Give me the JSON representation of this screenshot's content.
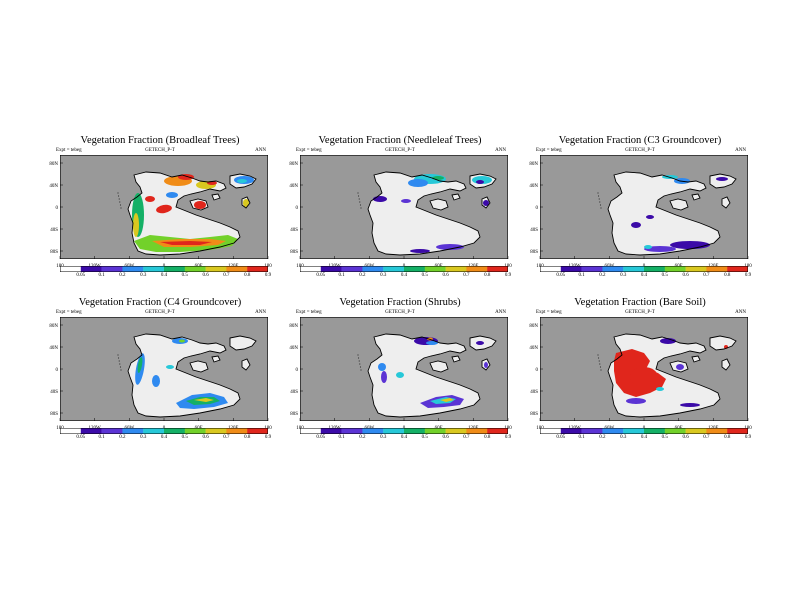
{
  "colors": {
    "ocean": "#999999",
    "land": "#eeeeee",
    "coast": "#000000",
    "scale": [
      "#ffffff",
      "#3b0aa8",
      "#5b34d4",
      "#2f8af0",
      "#27c8d8",
      "#14b066",
      "#72d12a",
      "#d9c820",
      "#f08c17",
      "#e0261c"
    ]
  },
  "common": {
    "expt": "Expt = tebeg",
    "code": "GETECH_P-T",
    "period": "ANN",
    "lat_ticks": [
      "80N",
      "40N",
      "0",
      "40S",
      "80S"
    ],
    "lon_ticks": [
      "180",
      "120W",
      "60W",
      "0",
      "60E",
      "120E",
      "180"
    ],
    "cbar_ticks": [
      "0.05",
      "0.1",
      "0.2",
      "0.3",
      "0.4",
      "0.5",
      "0.6",
      "0.7",
      "0.8",
      "0.9"
    ]
  },
  "panels": [
    {
      "id": "broadleaf",
      "title": "Vegetation Fraction (Broadleaf Trees)",
      "lat_ticks": [
        "80N",
        "40N",
        "0",
        "40S",
        "80S"
      ],
      "lon_ticks": [
        "180",
        "120W",
        "60W",
        "0",
        "60E",
        "120E",
        "180"
      ],
      "cbar_ticks": [
        "0.05",
        "0.1",
        "0.2",
        "0.3",
        "0.4",
        "0.5",
        "0.6",
        "0.7",
        "0.8",
        "0.9"
      ]
    },
    {
      "id": "needleleaf",
      "title": "Vegetation Fraction (Needleleaf Trees)",
      "lat_ticks": [
        "80N",
        "40N",
        "0",
        "40S",
        "80S"
      ],
      "lon_ticks": [
        "180",
        "120W",
        "60W",
        "0",
        "60E",
        "120E",
        "180"
      ],
      "cbar_ticks": [
        "0.05",
        "0.1",
        "0.2",
        "0.3",
        "0.4",
        "0.5",
        "0.6",
        "0.7",
        "0.8",
        "0.9"
      ]
    },
    {
      "id": "c3",
      "title": "Vegetation Fraction (C3 Groundcover)",
      "lat_ticks": [
        "80N",
        "40N",
        "0",
        "40S",
        "80S"
      ],
      "lon_ticks": [
        "180",
        "120W",
        "60W",
        "0",
        "60E",
        "120E",
        "180"
      ],
      "cbar_ticks": [
        "0.05",
        "0.1",
        "0.2",
        "0.3",
        "0.4",
        "0.5",
        "0.6",
        "0.7",
        "0.8",
        "0.9"
      ]
    },
    {
      "id": "c4",
      "title": "Vegetation Fraction (C4 Groundcover)",
      "lat_ticks": [
        "80N",
        "40N",
        "0",
        "40S",
        "80S"
      ],
      "lon_ticks": [
        "180",
        "120W",
        "60W",
        "0",
        "60E",
        "120E",
        "180"
      ],
      "cbar_ticks": [
        "0.05",
        "0.1",
        "0.2",
        "0.3",
        "0.4",
        "0.5",
        "0.6",
        "0.7",
        "0.8",
        "0.9"
      ]
    },
    {
      "id": "shrubs",
      "title": "Vegetation Fraction (Shrubs)",
      "lat_ticks": [
        "80N",
        "40N",
        "0",
        "40S",
        "80S"
      ],
      "lon_ticks": [
        "180",
        "120W",
        "60W",
        "0",
        "60E",
        "120E",
        "180"
      ],
      "cbar_ticks": [
        "0.05",
        "0.1",
        "0.2",
        "0.3",
        "0.4",
        "0.5",
        "0.6",
        "0.7",
        "0.8",
        "0.9"
      ]
    },
    {
      "id": "baresoil",
      "title": "Vegetation Fraction (Bare Soil)",
      "lat_ticks": [
        "80N",
        "40N",
        "0",
        "40S",
        "80S"
      ],
      "lon_ticks": [
        "180",
        "120W",
        "60W",
        "0",
        "60E",
        "120E",
        "180"
      ],
      "cbar_ticks": [
        "0.05",
        "0.1",
        "0.2",
        "0.3",
        "0.4",
        "0.5",
        "0.6",
        "0.7",
        "0.8",
        "0.9"
      ]
    }
  ]
}
